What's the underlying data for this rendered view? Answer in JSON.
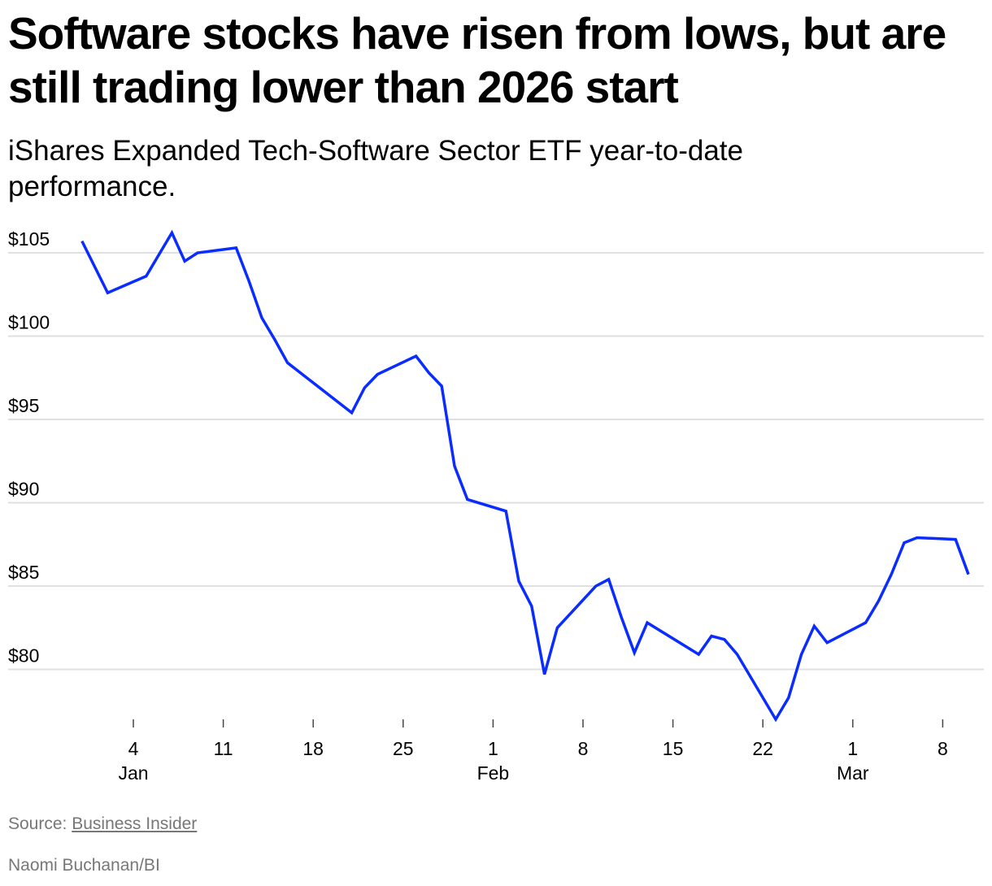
{
  "title": "Software stocks have risen from lows, but are still trading lower than 2026 start",
  "subtitle": "iShares Expanded Tech-Software Sector ETF year-to-date performance.",
  "source_label": "Source:",
  "source_link": "Business Insider",
  "credit": "Naomi Buchanan/BI",
  "chart_data": {
    "type": "line",
    "line_color": "#0a2cff",
    "grid": true,
    "ylim": [
      76,
      106
    ],
    "y_ticks": [
      {
        "v": 105,
        "label": "$105"
      },
      {
        "v": 100,
        "label": "$100"
      },
      {
        "v": 95,
        "label": "$95"
      },
      {
        "v": 90,
        "label": "$90"
      },
      {
        "v": 85,
        "label": "$85"
      },
      {
        "v": 80,
        "label": "$80"
      }
    ],
    "x_ticks": [
      {
        "date": "2026-01-04",
        "label": "4",
        "month": "Jan"
      },
      {
        "date": "2026-01-11",
        "label": "11"
      },
      {
        "date": "2026-01-18",
        "label": "18"
      },
      {
        "date": "2026-01-25",
        "label": "25"
      },
      {
        "date": "2026-02-01",
        "label": "1",
        "month": "Feb"
      },
      {
        "date": "2026-02-08",
        "label": "8"
      },
      {
        "date": "2026-02-15",
        "label": "15"
      },
      {
        "date": "2026-02-22",
        "label": "22"
      },
      {
        "date": "2026-03-01",
        "label": "1",
        "month": "Mar"
      },
      {
        "date": "2026-03-08",
        "label": "8"
      }
    ],
    "x": [
      "2025-12-31",
      "2026-01-02",
      "2026-01-05",
      "2026-01-06",
      "2026-01-07",
      "2026-01-08",
      "2026-01-09",
      "2026-01-12",
      "2026-01-13",
      "2026-01-14",
      "2026-01-15",
      "2026-01-16",
      "2026-01-20",
      "2026-01-21",
      "2026-01-22",
      "2026-01-23",
      "2026-01-26",
      "2026-01-27",
      "2026-01-28",
      "2026-01-29",
      "2026-01-30",
      "2026-02-02",
      "2026-02-03",
      "2026-02-04",
      "2026-02-05",
      "2026-02-06",
      "2026-02-09",
      "2026-02-10",
      "2026-02-11",
      "2026-02-12",
      "2026-02-13",
      "2026-02-17",
      "2026-02-18",
      "2026-02-19",
      "2026-02-20",
      "2026-02-23",
      "2026-02-24",
      "2026-02-25",
      "2026-02-26",
      "2026-02-27",
      "2026-03-02",
      "2026-03-03",
      "2026-03-04",
      "2026-03-05",
      "2026-03-06",
      "2026-03-09",
      "2026-03-10"
    ],
    "values": [
      105.7,
      102.6,
      103.6,
      104.9,
      106.2,
      104.5,
      105.0,
      105.3,
      103.3,
      101.1,
      99.8,
      98.4,
      96.0,
      95.4,
      96.9,
      97.7,
      98.8,
      97.8,
      97.0,
      92.2,
      90.2,
      89.5,
      85.3,
      83.8,
      79.7,
      82.5,
      85.0,
      85.4,
      83.1,
      81.0,
      82.8,
      80.9,
      82.0,
      81.8,
      80.9,
      77.0,
      78.3,
      80.9,
      82.6,
      81.6,
      82.8,
      84.1,
      85.7,
      87.6,
      87.9,
      87.8,
      85.7
    ]
  }
}
